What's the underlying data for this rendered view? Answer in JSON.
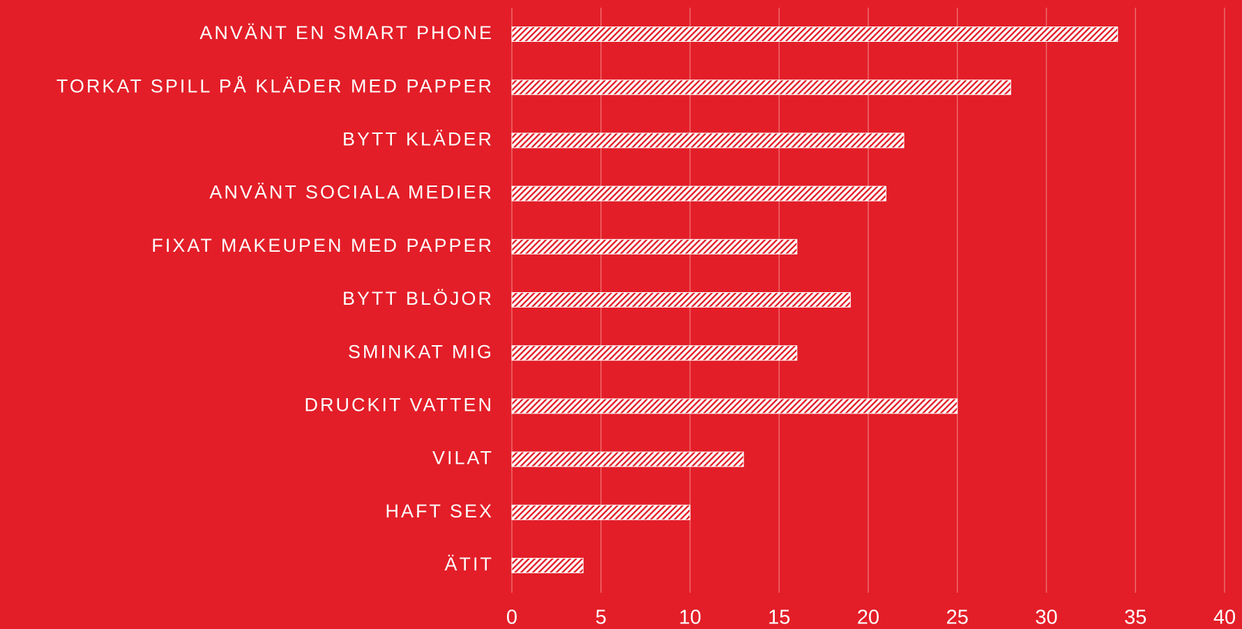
{
  "chart_data": {
    "type": "hbar",
    "categories": [
      "ANVÄNT EN SMART PHONE",
      "TORKAT SPILL PÅ KLÄDER MED PAPPER",
      "BYTT KLÄDER",
      "ANVÄNT SOCIALA MEDIER",
      "FIXAT MAKEUPEN MED PAPPER",
      "BYTT BLÖJOR",
      "SMINKAT MIG",
      "DRUCKIT VATTEN",
      "VILAT",
      "HAFT SEX",
      "ÄTIT"
    ],
    "values": [
      34,
      28,
      22,
      21,
      16,
      19,
      16,
      25,
      13,
      10,
      4
    ],
    "color": "#ffffff",
    "xlim": [
      0,
      40
    ],
    "xticks": [
      0,
      5,
      10,
      15,
      20,
      25,
      30,
      35,
      40
    ],
    "grid": true
  }
}
